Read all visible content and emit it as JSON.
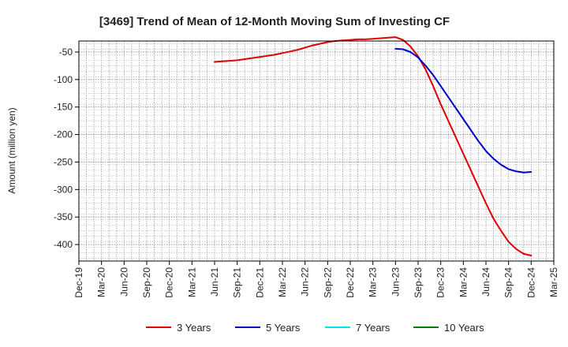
{
  "chart_data": {
    "type": "line",
    "title": "[3469]  Trend of Mean of 12-Month Moving Sum of Investing CF",
    "xlabel": "",
    "ylabel": "Amount (million yen)",
    "x_ticks": [
      "Dec-19",
      "Mar-20",
      "Jun-20",
      "Sep-20",
      "Dec-20",
      "Mar-21",
      "Jun-21",
      "Sep-21",
      "Dec-21",
      "Mar-22",
      "Jun-22",
      "Sep-22",
      "Dec-22",
      "Mar-23",
      "Jun-23",
      "Sep-23",
      "Dec-23",
      "Mar-24",
      "Jun-24",
      "Sep-24",
      "Dec-24",
      "Mar-25"
    ],
    "y_ticks": [
      -50,
      -100,
      -150,
      -200,
      -250,
      -300,
      -350,
      -400
    ],
    "ylim": [
      -430,
      -30
    ],
    "grid": true,
    "legend_position": "bottom",
    "series": [
      {
        "name": "3 Years",
        "color": "#e00000",
        "x": [
          "Jun-21",
          "Jul-21",
          "Aug-21",
          "Sep-21",
          "Oct-21",
          "Nov-21",
          "Dec-21",
          "Jan-22",
          "Feb-22",
          "Mar-22",
          "Apr-22",
          "May-22",
          "Jun-22",
          "Jul-22",
          "Aug-22",
          "Sep-22",
          "Oct-22",
          "Nov-22",
          "Dec-22",
          "Jan-23",
          "Feb-23",
          "Mar-23",
          "Apr-23",
          "May-23",
          "Jun-23",
          "Jul-23",
          "Aug-23",
          "Sep-23",
          "Oct-23",
          "Nov-23",
          "Dec-23",
          "Jan-24",
          "Feb-24",
          "Mar-24",
          "Apr-24",
          "May-24",
          "Jun-24",
          "Jul-24",
          "Aug-24",
          "Sep-24",
          "Oct-24",
          "Nov-24",
          "Dec-24"
        ],
        "values": [
          -68,
          -67,
          -66,
          -65,
          -63,
          -61,
          -59,
          -57,
          -55,
          -52,
          -49,
          -46,
          -42,
          -38,
          -35,
          -32,
          -30,
          -29,
          -28,
          -27,
          -27,
          -26,
          -25,
          -24,
          -23,
          -28,
          -40,
          -58,
          -82,
          -112,
          -145,
          -175,
          -205,
          -235,
          -265,
          -295,
          -325,
          -353,
          -375,
          -395,
          -408,
          -417,
          -420
        ]
      },
      {
        "name": "5 Years",
        "color": "#0000cc",
        "x": [
          "Jun-23",
          "Jul-23",
          "Aug-23",
          "Sep-23",
          "Oct-23",
          "Nov-23",
          "Dec-23",
          "Jan-24",
          "Feb-24",
          "Mar-24",
          "Apr-24",
          "May-24",
          "Jun-24",
          "Jul-24",
          "Aug-24",
          "Sep-24",
          "Oct-24",
          "Nov-24",
          "Dec-24"
        ],
        "values": [
          -44,
          -45,
          -50,
          -60,
          -75,
          -92,
          -112,
          -132,
          -152,
          -172,
          -192,
          -212,
          -230,
          -244,
          -255,
          -263,
          -267,
          -269,
          -268
        ]
      },
      {
        "name": "7 Years",
        "color": "#00e5ee",
        "x": [],
        "values": []
      },
      {
        "name": "10 Years",
        "color": "#007a00",
        "x": [],
        "values": []
      }
    ]
  }
}
